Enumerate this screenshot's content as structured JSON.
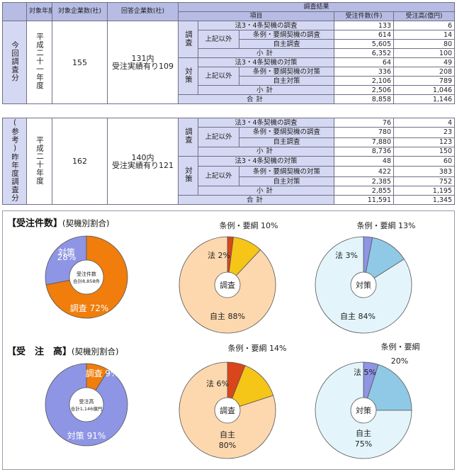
{
  "header": {
    "col_year": "対象年度",
    "col_target": "対象企業数(社)",
    "col_answer": "回答企業数(社)",
    "col_result": "調査結果",
    "col_item": "項目",
    "col_count": "受注件数(件)",
    "col_amount": "受注高(億円)"
  },
  "labels": {
    "chosa": "調査",
    "taisaku": "対策",
    "joki_igai": "上記以外",
    "ho34_chosa": "法3・4条契機の調査",
    "jorei_chosa": "条例・要綱契機の調査",
    "jishu_chosa": "自主調査",
    "ho34_taisaku": "法3・4条契機の対策",
    "jorei_taisaku": "条例・要綱契機の対策",
    "jishu_taisaku": "自主対策",
    "shokei": "小計",
    "gokei": "合計"
  },
  "current": {
    "row_label": "今回調査分",
    "year": "平成二十一年度",
    "target": "155",
    "answer_line1": "131内",
    "answer_line2": "受注実績有り109",
    "values": [
      [
        "133",
        "6"
      ],
      [
        "614",
        "14"
      ],
      [
        "5,605",
        "80"
      ],
      [
        "6,352",
        "100"
      ],
      [
        "64",
        "49"
      ],
      [
        "336",
        "208"
      ],
      [
        "2,106",
        "789"
      ],
      [
        "2,506",
        "1,046"
      ],
      [
        "8,858",
        "1,146"
      ]
    ]
  },
  "previous": {
    "row_label": "(参考)昨年度調査分",
    "year": "平成二十年度",
    "target": "162",
    "answer_line1": "140内",
    "answer_line2": "受注実績有り121",
    "values": [
      [
        "76",
        "4"
      ],
      [
        "780",
        "23"
      ],
      [
        "7,880",
        "123"
      ],
      [
        "8,736",
        "150"
      ],
      [
        "48",
        "60"
      ],
      [
        "422",
        "383"
      ],
      [
        "2,385",
        "752"
      ],
      [
        "2,855",
        "1,195"
      ],
      [
        "11,591",
        "1,345"
      ]
    ]
  },
  "charts": {
    "count_title": "【受注件数】",
    "count_sub": "(契機別割合)",
    "amount_title": "【受　注　高】",
    "amount_sub": "(契機別割合)",
    "colors": {
      "chosa": "#f07d0c",
      "taisaku": "#8e95e4",
      "ho": "#d9461c",
      "jorei": "#f5c518",
      "jishu_chosa": "#fdd8ae",
      "ho_t": "#8e95e4",
      "jorei_t": "#8fc9e6",
      "jishu_taisaku": "#e3f5fb"
    }
  },
  "chart_data": [
    {
      "type": "pie",
      "center_label": "受注件数",
      "center_sub": "合計8,858件",
      "slices": [
        {
          "name": "対策",
          "value": 28,
          "label": "28%"
        },
        {
          "name": "調査",
          "value": 72,
          "label": "調査 72%"
        }
      ]
    },
    {
      "type": "pie",
      "center_label": "調査",
      "slices": [
        {
          "name": "法",
          "value": 2,
          "label": "法 2%"
        },
        {
          "name": "条例・要綱",
          "value": 10,
          "label": "条例・要綱 10%"
        },
        {
          "name": "自主",
          "value": 88,
          "label": "自主 88%"
        }
      ]
    },
    {
      "type": "pie",
      "center_label": "対策",
      "slices": [
        {
          "name": "法",
          "value": 3,
          "label": "法 3%"
        },
        {
          "name": "条例・要綱",
          "value": 13,
          "label": "条例・要綱 13%"
        },
        {
          "name": "自主",
          "value": 84,
          "label": "自主 84%"
        }
      ]
    },
    {
      "type": "pie",
      "center_label": "受注高",
      "center_sub": "合計1,146億円",
      "slices": [
        {
          "name": "調査",
          "value": 9,
          "label": "調査 9%"
        },
        {
          "name": "対策",
          "value": 91,
          "label": "対策 91%"
        }
      ]
    },
    {
      "type": "pie",
      "center_label": "調査",
      "slices": [
        {
          "name": "法",
          "value": 6,
          "label": "法 6%"
        },
        {
          "name": "条例・要綱",
          "value": 14,
          "label": "条例・要綱 14%"
        },
        {
          "name": "自主",
          "value": 80,
          "label": "自主"
        }
      ]
    },
    {
      "type": "pie",
      "center_label": "対策",
      "slices": [
        {
          "name": "法",
          "value": 5,
          "label": "法 5%"
        },
        {
          "name": "条例・要綱",
          "value": 20,
          "label": "条例・要綱"
        },
        {
          "name": "自主",
          "value": 75,
          "label": "自主"
        }
      ]
    }
  ]
}
